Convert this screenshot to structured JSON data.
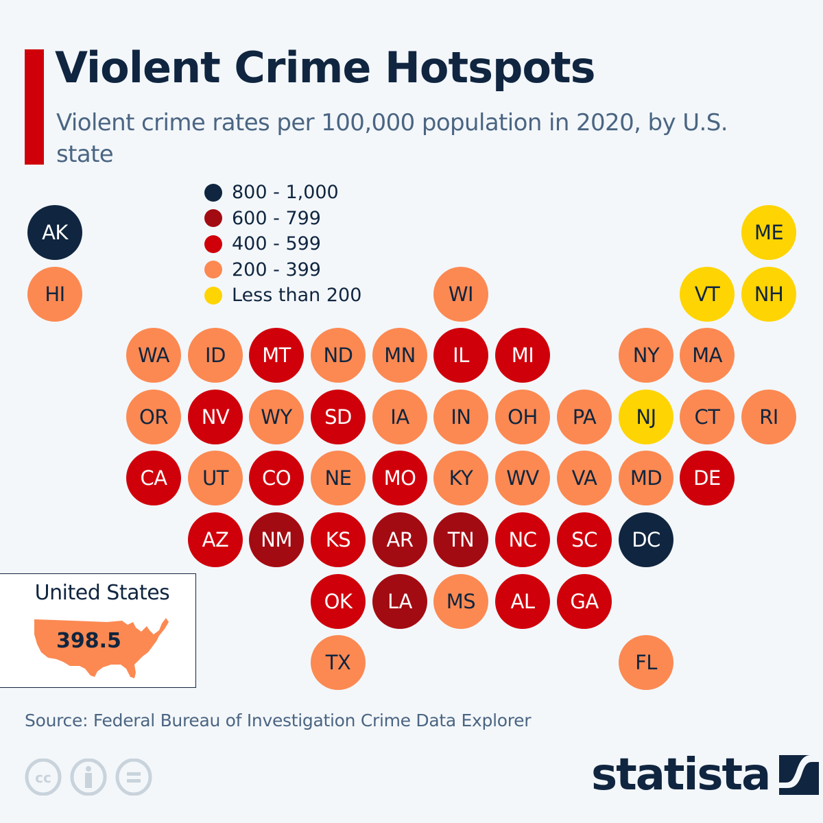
{
  "header": {
    "title": "Violent Crime Hotspots",
    "subtitle": "Violent crime rates per 100,000 population in 2020, by U.S. state"
  },
  "legend": {
    "items": [
      {
        "label": "800 - 1,000",
        "color": "#10253f",
        "key": "c5"
      },
      {
        "label": "600 - 799",
        "color": "#a30b12",
        "key": "c4"
      },
      {
        "label": "400 - 599",
        "color": "#d0000b",
        "key": "c3"
      },
      {
        "label": "200 - 399",
        "color": "#fc8952",
        "key": "c2"
      },
      {
        "label": "Less than 200",
        "color": "#fed402",
        "key": "c1"
      }
    ]
  },
  "colors": {
    "c5": {
      "bg": "#10253f",
      "fg": "#ffffff"
    },
    "c4": {
      "bg": "#a30b12",
      "fg": "#ffffff"
    },
    "c3": {
      "bg": "#d0000b",
      "fg": "#ffffff"
    },
    "c2": {
      "bg": "#fc8952",
      "fg": "#10253f"
    },
    "c1": {
      "bg": "#fed402",
      "fg": "#10253f"
    }
  },
  "national": {
    "label": "United States",
    "value": "398.5"
  },
  "footer": {
    "source": "Source: Federal Bureau of Investigation Crime Data Explorer",
    "brand": "statista"
  },
  "chart_data": {
    "type": "tile-map",
    "title": "Violent Crime Hotspots",
    "subtitle": "Violent crime rates per 100,000 population in 2020, by U.S. state",
    "national_average": {
      "label": "United States",
      "value": 398.5
    },
    "categories": [
      "800 - 1,000",
      "600 - 799",
      "400 - 599",
      "200 - 399",
      "Less than 200"
    ],
    "tiles": [
      {
        "state": "AK",
        "col": 0,
        "row": 0,
        "category": "800 - 1,000",
        "key": "c5"
      },
      {
        "state": "ME",
        "col": 11,
        "row": 0,
        "category": "Less than 200",
        "key": "c1"
      },
      {
        "state": "HI",
        "col": 0,
        "row": 1,
        "category": "200 - 399",
        "key": "c2"
      },
      {
        "state": "WI",
        "col": 6,
        "row": 1,
        "category": "200 - 399",
        "key": "c2"
      },
      {
        "state": "VT",
        "col": 10,
        "row": 1,
        "category": "Less than 200",
        "key": "c1"
      },
      {
        "state": "NH",
        "col": 11,
        "row": 1,
        "category": "Less than 200",
        "key": "c1"
      },
      {
        "state": "WA",
        "col": 1,
        "row": 2,
        "category": "200 - 399",
        "key": "c2"
      },
      {
        "state": "ID",
        "col": 2,
        "row": 2,
        "category": "200 - 399",
        "key": "c2"
      },
      {
        "state": "MT",
        "col": 3,
        "row": 2,
        "category": "400 - 599",
        "key": "c3"
      },
      {
        "state": "ND",
        "col": 4,
        "row": 2,
        "category": "200 - 399",
        "key": "c2"
      },
      {
        "state": "MN",
        "col": 5,
        "row": 2,
        "category": "200 - 399",
        "key": "c2"
      },
      {
        "state": "IL",
        "col": 6,
        "row": 2,
        "category": "400 - 599",
        "key": "c3"
      },
      {
        "state": "MI",
        "col": 7,
        "row": 2,
        "category": "400 - 599",
        "key": "c3"
      },
      {
        "state": "NY",
        "col": 9,
        "row": 2,
        "category": "200 - 399",
        "key": "c2"
      },
      {
        "state": "MA",
        "col": 10,
        "row": 2,
        "category": "200 - 399",
        "key": "c2"
      },
      {
        "state": "OR",
        "col": 1,
        "row": 3,
        "category": "200 - 399",
        "key": "c2"
      },
      {
        "state": "NV",
        "col": 2,
        "row": 3,
        "category": "400 - 599",
        "key": "c3"
      },
      {
        "state": "WY",
        "col": 3,
        "row": 3,
        "category": "200 - 399",
        "key": "c2"
      },
      {
        "state": "SD",
        "col": 4,
        "row": 3,
        "category": "400 - 599",
        "key": "c3"
      },
      {
        "state": "IA",
        "col": 5,
        "row": 3,
        "category": "200 - 399",
        "key": "c2"
      },
      {
        "state": "IN",
        "col": 6,
        "row": 3,
        "category": "200 - 399",
        "key": "c2"
      },
      {
        "state": "OH",
        "col": 7,
        "row": 3,
        "category": "200 - 399",
        "key": "c2"
      },
      {
        "state": "PA",
        "col": 8,
        "row": 3,
        "category": "200 - 399",
        "key": "c2"
      },
      {
        "state": "NJ",
        "col": 9,
        "row": 3,
        "category": "Less than 200",
        "key": "c1"
      },
      {
        "state": "CT",
        "col": 10,
        "row": 3,
        "category": "200 - 399",
        "key": "c2"
      },
      {
        "state": "RI",
        "col": 11,
        "row": 3,
        "category": "200 - 399",
        "key": "c2"
      },
      {
        "state": "CA",
        "col": 1,
        "row": 4,
        "category": "400 - 599",
        "key": "c3"
      },
      {
        "state": "UT",
        "col": 2,
        "row": 4,
        "category": "200 - 399",
        "key": "c2"
      },
      {
        "state": "CO",
        "col": 3,
        "row": 4,
        "category": "400 - 599",
        "key": "c3"
      },
      {
        "state": "NE",
        "col": 4,
        "row": 4,
        "category": "200 - 399",
        "key": "c2"
      },
      {
        "state": "MO",
        "col": 5,
        "row": 4,
        "category": "400 - 599",
        "key": "c3"
      },
      {
        "state": "KY",
        "col": 6,
        "row": 4,
        "category": "200 - 399",
        "key": "c2"
      },
      {
        "state": "WV",
        "col": 7,
        "row": 4,
        "category": "200 - 399",
        "key": "c2"
      },
      {
        "state": "VA",
        "col": 8,
        "row": 4,
        "category": "200 - 399",
        "key": "c2"
      },
      {
        "state": "MD",
        "col": 9,
        "row": 4,
        "category": "200 - 399",
        "key": "c2"
      },
      {
        "state": "DE",
        "col": 10,
        "row": 4,
        "category": "400 - 599",
        "key": "c3"
      },
      {
        "state": "AZ",
        "col": 2,
        "row": 5,
        "category": "400 - 599",
        "key": "c3"
      },
      {
        "state": "NM",
        "col": 3,
        "row": 5,
        "category": "600 - 799",
        "key": "c4"
      },
      {
        "state": "KS",
        "col": 4,
        "row": 5,
        "category": "400 - 599",
        "key": "c3"
      },
      {
        "state": "AR",
        "col": 5,
        "row": 5,
        "category": "600 - 799",
        "key": "c4"
      },
      {
        "state": "TN",
        "col": 6,
        "row": 5,
        "category": "600 - 799",
        "key": "c4"
      },
      {
        "state": "NC",
        "col": 7,
        "row": 5,
        "category": "400 - 599",
        "key": "c3"
      },
      {
        "state": "SC",
        "col": 8,
        "row": 5,
        "category": "400 - 599",
        "key": "c3"
      },
      {
        "state": "DC",
        "col": 9,
        "row": 5,
        "category": "800 - 1,000",
        "key": "c5"
      },
      {
        "state": "OK",
        "col": 4,
        "row": 6,
        "category": "400 - 599",
        "key": "c3"
      },
      {
        "state": "LA",
        "col": 5,
        "row": 6,
        "category": "600 - 799",
        "key": "c4"
      },
      {
        "state": "MS",
        "col": 6,
        "row": 6,
        "category": "200 - 399",
        "key": "c2"
      },
      {
        "state": "AL",
        "col": 7,
        "row": 6,
        "category": "400 - 599",
        "key": "c3"
      },
      {
        "state": "GA",
        "col": 8,
        "row": 6,
        "category": "400 - 599",
        "key": "c3"
      },
      {
        "state": "TX",
        "col": 4,
        "row": 7,
        "category": "200 - 399",
        "key": "c2"
      },
      {
        "state": "FL",
        "col": 9,
        "row": 7,
        "category": "200 - 399",
        "key": "c2"
      }
    ],
    "legend_position": "top-left",
    "grid": false
  }
}
